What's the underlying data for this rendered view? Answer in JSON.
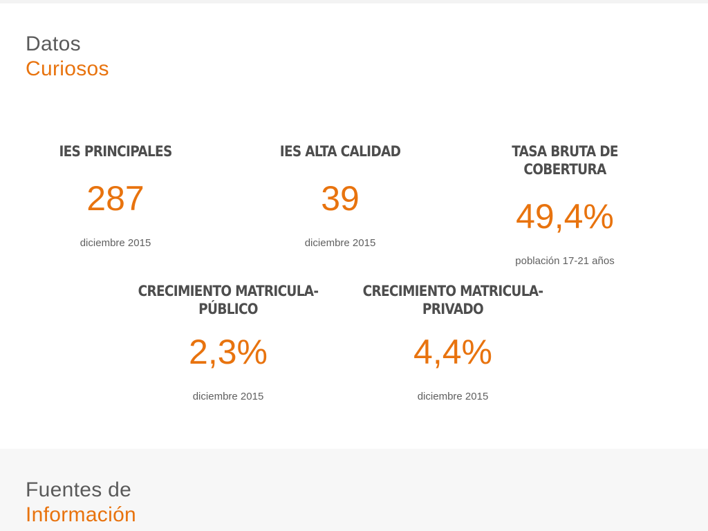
{
  "datos": {
    "title_line1": "Datos",
    "title_line2": "Curiosos"
  },
  "stats": [
    {
      "label": "IES PRINCIPALES",
      "value": "287",
      "note": "diciembre 2015"
    },
    {
      "label": "IES ALTA CALIDAD",
      "value": "39",
      "note": "diciembre 2015"
    },
    {
      "label": "TASA BRUTA DE COBERTURA",
      "value": "49,4%",
      "note": "población 17-21 años"
    },
    {
      "label_line1": "CRECIMIENTO MATRICULA-",
      "label_line2": "PÚBLICO",
      "value": "2,3%",
      "note": "diciembre 2015"
    },
    {
      "label_line1": "CRECIMIENTO MATRICULA-",
      "label_line2": "PRIVADO",
      "value": "4,4%",
      "note": "diciembre 2015"
    }
  ],
  "fuentes": {
    "title_line1": "Fuentes de",
    "title_line2": "Información"
  },
  "colors": {
    "accent": "#e8730e",
    "heading": "#5a5a5a",
    "label": "#4d4d4d",
    "section_bg": "#f7f7f7"
  }
}
